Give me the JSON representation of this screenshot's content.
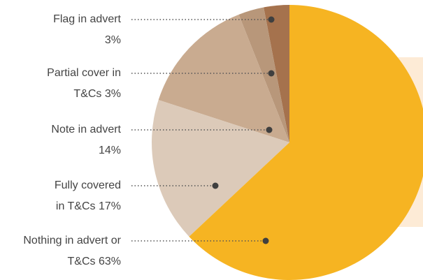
{
  "chart_data": {
    "type": "pie",
    "categories": [
      "Flag in advert",
      "Partial cover in T&Cs",
      "Note in advert",
      "Fully covered in T&Cs",
      "Nothing in advert or T&Cs"
    ],
    "values": [
      3,
      3,
      14,
      17,
      63
    ],
    "value_labels": [
      "3%",
      "3%",
      "14%",
      "17%",
      "63%"
    ],
    "colors": [
      "#a5724d",
      "#b8977a",
      "#c9ab90",
      "#dccab9",
      "#f6b422"
    ]
  }
}
